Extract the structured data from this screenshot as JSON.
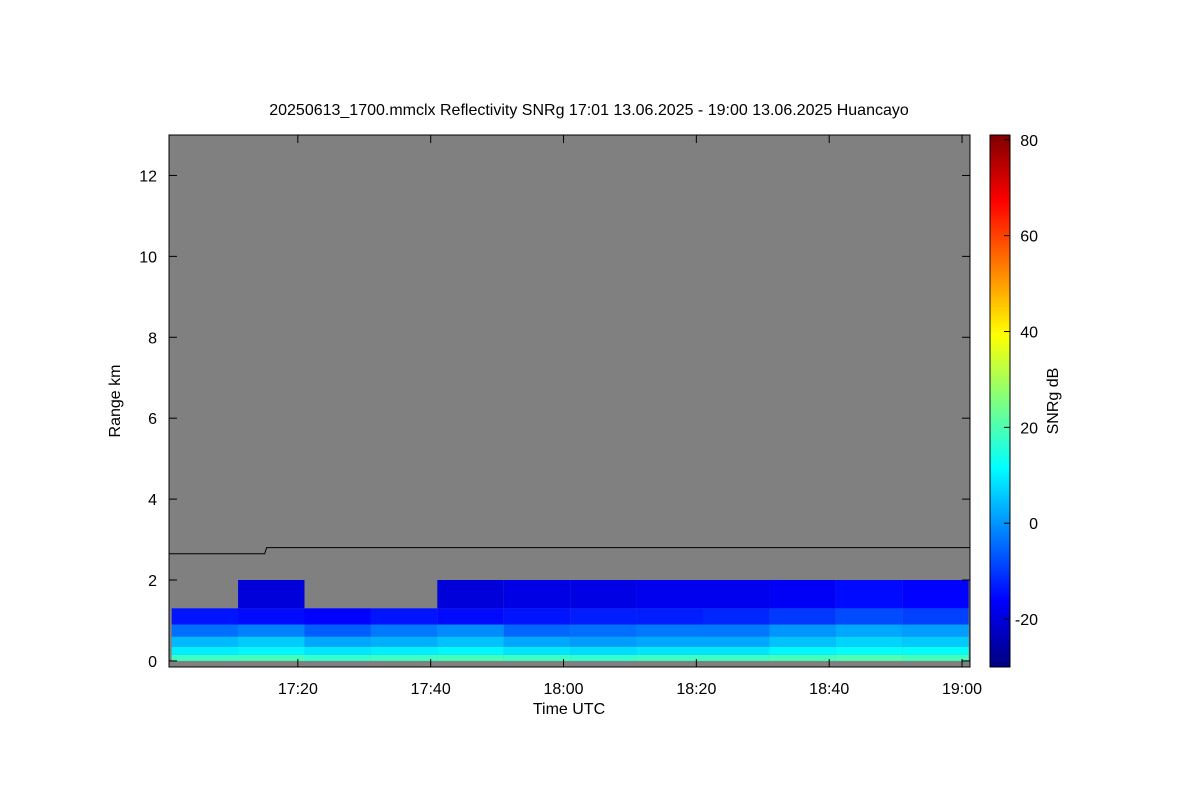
{
  "chart_data": {
    "type": "heatmap",
    "title": "20250613_1700.mmclx Reflectivity SNRg   17:01 13.06.2025 - 19:00 13.06.2025 Huancayo",
    "xlabel": "Time UTC",
    "ylabel": "Range km",
    "colorbar_label": "SNRg dB",
    "colormap": "jet",
    "background": "#808080",
    "x": [
      17.0167,
      17.1833,
      17.35,
      17.5167,
      17.6833,
      17.85,
      18.0167,
      18.1833,
      18.35,
      18.5167,
      18.6833,
      18.85,
      19.0167
    ],
    "y": [
      0,
      0.15,
      0.35,
      0.6,
      0.9,
      1.3,
      2.0
    ],
    "z": [
      [
        18,
        19,
        17,
        18,
        19,
        18,
        17,
        18,
        18,
        19,
        20,
        19
      ],
      [
        10,
        11,
        9,
        10,
        11,
        9,
        8,
        9,
        9,
        11,
        12,
        12
      ],
      [
        4,
        6,
        2,
        3,
        5,
        2,
        1,
        2,
        2,
        5,
        7,
        6
      ],
      [
        -4,
        -2,
        -6,
        -3,
        -1,
        -5,
        -4,
        -3,
        -3,
        0,
        2,
        1
      ],
      [
        -14,
        -15,
        -16,
        -14,
        -15,
        -14,
        -13,
        -13,
        -12,
        -10,
        -8,
        -9
      ],
      [
        null,
        -20,
        null,
        null,
        -20,
        -19,
        -19,
        -18,
        -18,
        -17,
        -15,
        -16
      ]
    ],
    "overlay": {
      "x": [
        17.01,
        17.25,
        17.255,
        19.02
      ],
      "y": [
        2.65,
        2.65,
        2.8,
        2.8
      ],
      "color": "#000000"
    },
    "xlim": [
      17.01,
      19.02
    ],
    "xticks": [
      {
        "value": 17.3333,
        "label": "17:20"
      },
      {
        "value": 17.6667,
        "label": "17:40"
      },
      {
        "value": 18.0,
        "label": "18:00"
      },
      {
        "value": 18.3333,
        "label": "18:20"
      },
      {
        "value": 18.6667,
        "label": "18:40"
      },
      {
        "value": 19.0,
        "label": "19:00"
      }
    ],
    "ylim": [
      -0.15,
      13
    ],
    "yticks": [
      0,
      2,
      4,
      6,
      8,
      10,
      12
    ],
    "clim": [
      -30,
      81
    ],
    "cticks": [
      -20,
      0,
      20,
      40,
      60,
      80
    ]
  }
}
